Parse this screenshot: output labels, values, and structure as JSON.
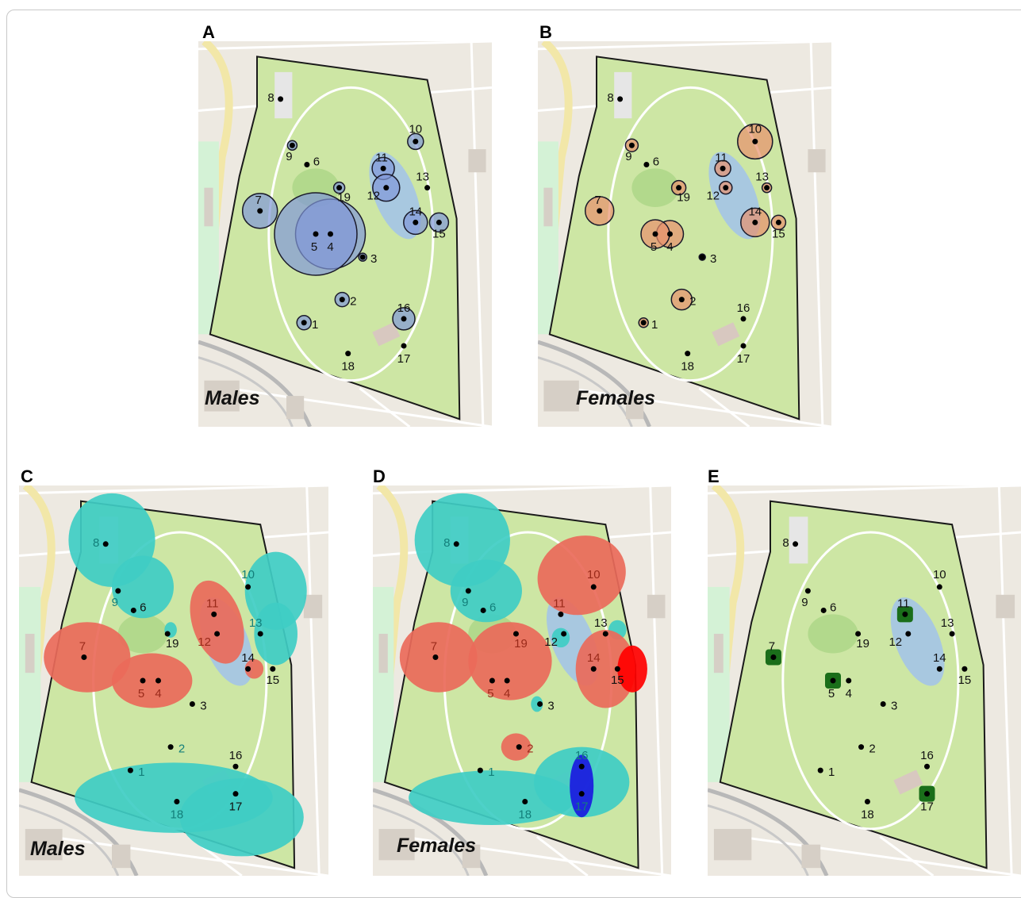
{
  "panels": {
    "A": {
      "letter": "A",
      "caption": "Males"
    },
    "B": {
      "letter": "B",
      "caption": "Females"
    },
    "C": {
      "letter": "C",
      "caption": "Males"
    },
    "D": {
      "letter": "D",
      "caption": "Females"
    },
    "E": {
      "letter": "E",
      "caption": ""
    }
  },
  "sites": [
    "1",
    "2",
    "3",
    "4",
    "5",
    "6",
    "7",
    "8",
    "9",
    "10",
    "11",
    "12",
    "13",
    "14",
    "15",
    "16",
    "17",
    "18",
    "19"
  ],
  "colors": {
    "park": "#cde6a4",
    "map_bg": "#ede9e1",
    "male_circle": "#8097d8",
    "female_circle": "#e8906c",
    "hotspot": "#ea6a5a",
    "coldspot": "#3fcdc4",
    "strong_hotspot": "#ff0000",
    "strong_coldspot": "#1a1ae0",
    "cluster": "#1a6e1a"
  }
}
